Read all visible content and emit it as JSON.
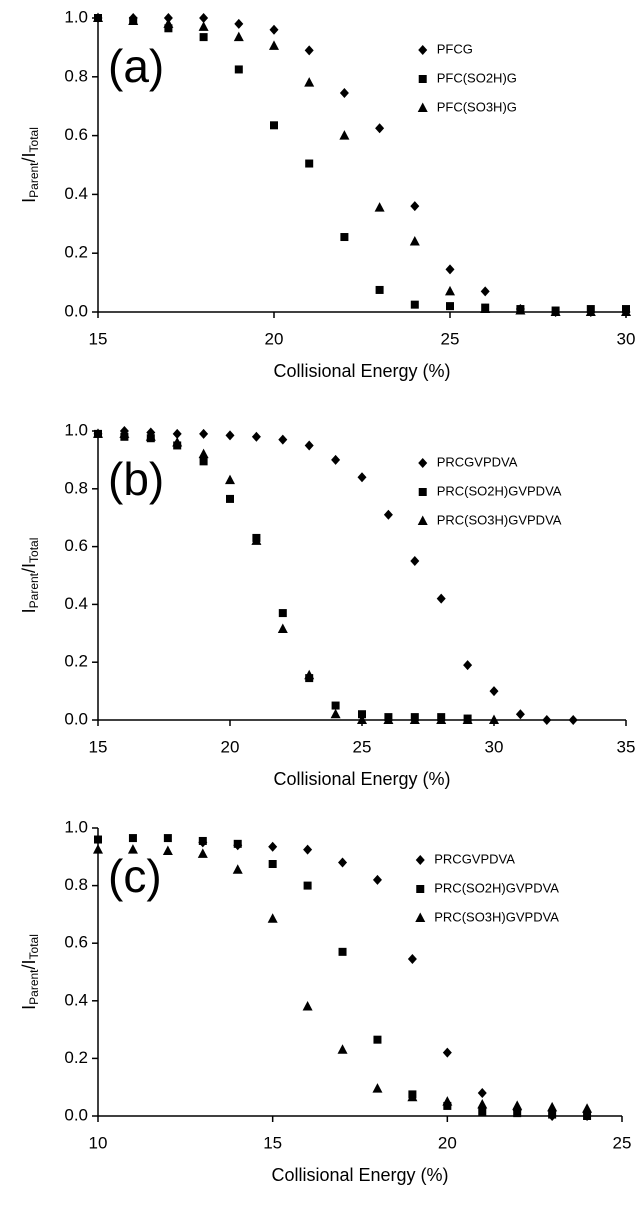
{
  "chart_data": [
    {
      "type": "scatter",
      "annotation": "(a)",
      "xlabel": "Collisional Energy (%)",
      "ylabel": [
        "I",
        "Parent",
        "/I",
        "Total"
      ],
      "xlim": [
        15,
        30
      ],
      "xticks": [
        15,
        20,
        25,
        30
      ],
      "ylim": [
        0,
        1
      ],
      "yticks": [
        {
          "value": 0,
          "label": "0.0"
        },
        {
          "value": 0.2,
          "label": "0.2"
        },
        {
          "value": 0.4,
          "label": "0.4"
        },
        {
          "value": 0.6,
          "label": "0.6"
        },
        {
          "value": 0.8,
          "label": "0.8"
        },
        {
          "value": 1,
          "label": "1.0"
        }
      ],
      "legend": "upper right",
      "series": [
        {
          "name": "PFCG",
          "marker": "diamond",
          "color": "#000000",
          "x": [
            15,
            16,
            17,
            18,
            19,
            20,
            21,
            22,
            23,
            24,
            25,
            26,
            27,
            28,
            29,
            30
          ],
          "values": [
            1.0,
            1.0,
            1.0,
            1.0,
            0.98,
            0.96,
            0.89,
            0.745,
            0.625,
            0.36,
            0.145,
            0.07,
            0.01,
            0.0,
            0.0,
            0.0
          ]
        },
        {
          "name": "PFC(SO2H)G",
          "marker": "square",
          "color": "#000000",
          "x": [
            15,
            16,
            17,
            18,
            19,
            20,
            21,
            22,
            23,
            24,
            25,
            26,
            27,
            28,
            29,
            30
          ],
          "values": [
            1.0,
            0.99,
            0.965,
            0.935,
            0.825,
            0.635,
            0.505,
            0.255,
            0.075,
            0.025,
            0.02,
            0.015,
            0.01,
            0.005,
            0.01,
            0.01
          ]
        },
        {
          "name": "PFC(SO3H)G",
          "marker": "triangle",
          "color": "#000000",
          "x": [
            15,
            16,
            17,
            18,
            19,
            20,
            21,
            22,
            23,
            24,
            25,
            26,
            27,
            28,
            29,
            30
          ],
          "values": [
            1.0,
            0.99,
            0.98,
            0.97,
            0.935,
            0.905,
            0.78,
            0.6,
            0.355,
            0.24,
            0.07,
            0.01,
            0.005,
            0.0,
            0.0,
            0.0
          ]
        }
      ]
    },
    {
      "type": "scatter",
      "annotation": "(b)",
      "xlabel": "Collisional Energy (%)",
      "ylabel": [
        "I",
        "Parent",
        "/I",
        "Total"
      ],
      "xlim": [
        15,
        35
      ],
      "xticks": [
        15,
        20,
        25,
        30,
        35
      ],
      "ylim": [
        0,
        1
      ],
      "yticks": [
        {
          "value": 0,
          "label": "0.0"
        },
        {
          "value": 0.2,
          "label": "0.2"
        },
        {
          "value": 0.4,
          "label": "0.4"
        },
        {
          "value": 0.6,
          "label": "0.6"
        },
        {
          "value": 0.8,
          "label": "0.8"
        },
        {
          "value": 1,
          "label": "1.0"
        }
      ],
      "legend": "upper right",
      "series": [
        {
          "name": "PRCGVPDVA",
          "marker": "diamond",
          "color": "#000000",
          "x": [
            15,
            16,
            17,
            18,
            19,
            20,
            21,
            22,
            23,
            24,
            25,
            26,
            27,
            28,
            29,
            30,
            31,
            32,
            33
          ],
          "values": [
            0.99,
            1.0,
            0.995,
            0.99,
            0.99,
            0.985,
            0.98,
            0.97,
            0.95,
            0.9,
            0.84,
            0.71,
            0.55,
            0.42,
            0.19,
            0.1,
            0.02,
            0.0,
            0.0
          ]
        },
        {
          "name": "PRC(SO2H)GVPDVA",
          "marker": "square",
          "color": "#000000",
          "x": [
            15,
            16,
            17,
            18,
            19,
            20,
            21,
            22,
            23,
            24,
            25,
            26,
            27,
            28,
            29
          ],
          "values": [
            0.99,
            0.98,
            0.975,
            0.95,
            0.895,
            0.765,
            0.63,
            0.37,
            0.145,
            0.05,
            0.02,
            0.01,
            0.01,
            0.01,
            0.005
          ]
        },
        {
          "name": "PRC(SO3H)GVPDVA",
          "marker": "triangle",
          "color": "#000000",
          "x": [
            15,
            16,
            17,
            18,
            19,
            20,
            21,
            22,
            23,
            24,
            25,
            26,
            27,
            28,
            29,
            30
          ],
          "values": [
            0.99,
            0.99,
            0.98,
            0.96,
            0.92,
            0.83,
            0.62,
            0.315,
            0.155,
            0.02,
            0.0,
            0.0,
            0.0,
            0.0,
            0.0,
            0.0
          ]
        }
      ]
    },
    {
      "type": "scatter",
      "annotation": "(c)",
      "xlabel": "Collisional Energy (%)",
      "ylabel": [
        "I",
        "Parent",
        "/I",
        "Total"
      ],
      "xlim": [
        10,
        25
      ],
      "xticks": [
        10,
        15,
        20,
        25
      ],
      "ylim": [
        0,
        1
      ],
      "yticks": [
        {
          "value": 0,
          "label": "0.0"
        },
        {
          "value": 0.2,
          "label": "0.2"
        },
        {
          "value": 0.4,
          "label": "0.4"
        },
        {
          "value": 0.6,
          "label": "0.6"
        },
        {
          "value": 0.8,
          "label": "0.8"
        },
        {
          "value": 1,
          "label": "1.0"
        }
      ],
      "legend": "upper right",
      "series": [
        {
          "name": "PRCGVPDVA",
          "marker": "diamond",
          "color": "#000000",
          "x": [
            13,
            14,
            15,
            16,
            17,
            18,
            19,
            20,
            21,
            22,
            23,
            24
          ],
          "values": [
            0.95,
            0.94,
            0.935,
            0.925,
            0.88,
            0.82,
            0.545,
            0.22,
            0.08,
            0.02,
            0.0,
            0.0
          ]
        },
        {
          "name": "PRC(SO2H)GVPDVA",
          "marker": "square",
          "color": "#000000",
          "x": [
            10,
            11,
            12,
            13,
            14,
            15,
            16,
            17,
            18,
            19,
            20,
            21,
            22,
            23,
            24
          ],
          "values": [
            0.96,
            0.965,
            0.965,
            0.955,
            0.945,
            0.875,
            0.8,
            0.57,
            0.265,
            0.075,
            0.035,
            0.015,
            0.01,
            0.005,
            0.0
          ]
        },
        {
          "name": "PRC(SO3H)GVPDVA",
          "marker": "triangle",
          "color": "#000000",
          "x": [
            10,
            11,
            12,
            13,
            14,
            15,
            16,
            17,
            18,
            19,
            20,
            21,
            22,
            23,
            24
          ],
          "values": [
            0.925,
            0.925,
            0.92,
            0.91,
            0.855,
            0.685,
            0.38,
            0.23,
            0.095,
            0.065,
            0.05,
            0.04,
            0.035,
            0.03,
            0.025
          ]
        }
      ]
    }
  ]
}
